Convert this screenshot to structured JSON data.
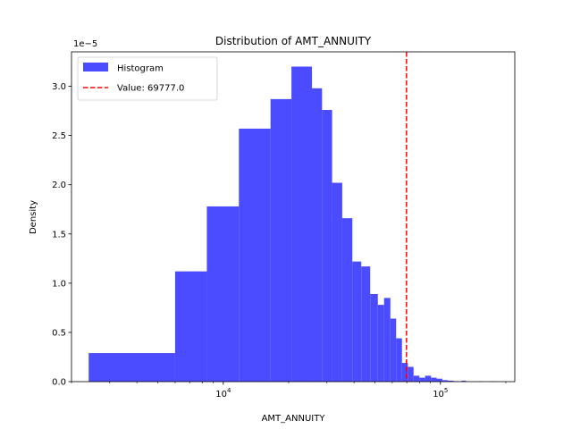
{
  "chart_data": {
    "type": "bar",
    "title": "Distribution of AMT_ANNUITY",
    "xlabel": "AMT_ANNUITY",
    "ylabel": "Density",
    "y_offset_label": "1e−5",
    "x_scale": "log",
    "xlim": [
      2000,
      220000
    ],
    "ylim": [
      0,
      3.35e-05
    ],
    "x_ticks": [
      {
        "value": 10000,
        "base": "10",
        "exp": "4"
      },
      {
        "value": 100000,
        "base": "10",
        "exp": "5"
      }
    ],
    "y_ticks": [
      {
        "value": 0.0,
        "label": "0.0"
      },
      {
        "value": 5e-06,
        "label": "0.5"
      },
      {
        "value": 1e-05,
        "label": "1.0"
      },
      {
        "value": 1.5e-05,
        "label": "1.5"
      },
      {
        "value": 2e-05,
        "label": "2.0"
      },
      {
        "value": 2.5e-05,
        "label": "2.5"
      },
      {
        "value": 3e-05,
        "label": "3.0"
      }
    ],
    "bar_color": "#4b4bff",
    "bins": [
      {
        "x0": 2400,
        "x1": 6000,
        "density": 2.9e-06
      },
      {
        "x0": 6000,
        "x1": 8400,
        "density": 1.12e-05
      },
      {
        "x0": 8400,
        "x1": 11800,
        "density": 1.78e-05
      },
      {
        "x0": 11800,
        "x1": 16500,
        "density": 2.57e-05
      },
      {
        "x0": 16500,
        "x1": 20600,
        "density": 2.87e-05
      },
      {
        "x0": 20600,
        "x1": 25600,
        "density": 3.2e-05
      },
      {
        "x0": 25600,
        "x1": 28500,
        "density": 2.98e-05
      },
      {
        "x0": 28500,
        "x1": 31700,
        "density": 2.76e-05
      },
      {
        "x0": 31700,
        "x1": 35300,
        "density": 2.02e-05
      },
      {
        "x0": 35300,
        "x1": 39300,
        "density": 1.66e-05
      },
      {
        "x0": 39300,
        "x1": 43200,
        "density": 1.22e-05
      },
      {
        "x0": 43200,
        "x1": 47500,
        "density": 1.17e-05
      },
      {
        "x0": 47500,
        "x1": 51500,
        "density": 8.9e-06
      },
      {
        "x0": 51500,
        "x1": 55000,
        "density": 7.8e-06
      },
      {
        "x0": 55000,
        "x1": 58800,
        "density": 8.5e-06
      },
      {
        "x0": 58800,
        "x1": 62500,
        "density": 6.4e-06
      },
      {
        "x0": 62500,
        "x1": 66500,
        "density": 4.4e-06
      },
      {
        "x0": 66500,
        "x1": 70800,
        "density": 1.9e-06
      },
      {
        "x0": 70800,
        "x1": 75200,
        "density": 1.5e-06
      },
      {
        "x0": 75200,
        "x1": 80000,
        "density": 6e-07
      },
      {
        "x0": 80000,
        "x1": 85000,
        "density": 4e-07
      },
      {
        "x0": 85000,
        "x1": 90500,
        "density": 6e-07
      },
      {
        "x0": 90500,
        "x1": 96000,
        "density": 4e-07
      },
      {
        "x0": 96000,
        "x1": 102000,
        "density": 3e-07
      },
      {
        "x0": 102000,
        "x1": 108000,
        "density": 1.5e-07
      },
      {
        "x0": 108000,
        "x1": 115000,
        "density": 1e-07
      },
      {
        "x0": 115000,
        "x1": 122000,
        "density": 5e-08
      },
      {
        "x0": 125000,
        "x1": 131000,
        "density": 1e-07
      },
      {
        "x0": 150000,
        "x1": 158000,
        "density": 3e-08
      },
      {
        "x0": 170000,
        "x1": 180000,
        "density": 3e-08
      }
    ],
    "vline": {
      "value": 69777.0,
      "color": "#ff0000",
      "style": "dashed"
    },
    "legend": {
      "placement": "upper-left",
      "entries": [
        {
          "label": "Histogram",
          "kind": "patch",
          "color": "#4b4bff"
        },
        {
          "label": "Value: 69777.0",
          "kind": "dashed-line",
          "color": "#ff0000"
        }
      ]
    }
  }
}
